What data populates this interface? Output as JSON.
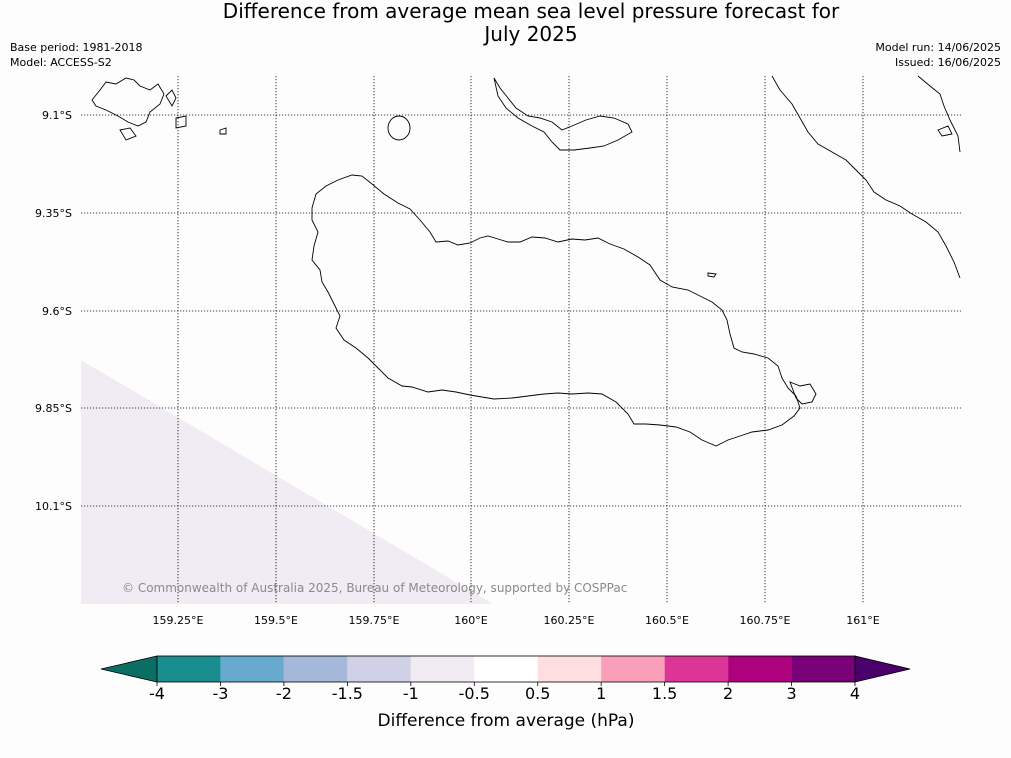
{
  "title": {
    "line1": "Difference from average mean sea level pressure forecast for",
    "line2": "July 2025"
  },
  "meta": {
    "base_period": "Base period: 1981-2018",
    "model": "Model: ACCESS-S2",
    "model_run": "Model run: 14/06/2025",
    "issued": "Issued: 16/06/2025"
  },
  "map": {
    "lon_ticks": [
      "159.25°E",
      "159.5°E",
      "159.75°E",
      "160°E",
      "160.25°E",
      "160.5°E",
      "160.75°E",
      "161°E"
    ],
    "lat_ticks": [
      "9.1°S",
      "9.35°S",
      "9.6°S",
      "9.85°S",
      "10.1°S"
    ],
    "copyright": "© Commonwealth of Australia 2025, Bureau of Meteorology, supported by COSPPac",
    "shaded_region_class": "-1 to -0.5",
    "shaded_color": "#f1ecf3"
  },
  "colorbar": {
    "title": "Difference from average (hPa)",
    "labels": [
      "-4",
      "-3",
      "-2",
      "-1.5",
      "-1",
      "-0.5",
      "0.5",
      "1",
      "1.5",
      "2",
      "3",
      "4"
    ],
    "colors": [
      "#1a8d8f",
      "#67a9cf",
      "#a6b8da",
      "#d0d1e6",
      "#f1ecf3",
      "#ffffff",
      "#ffdedf",
      "#f99fba",
      "#dd3497",
      "#ae017e",
      "#7a0177"
    ],
    "under_color": "#0b6e63",
    "over_color": "#49006a"
  }
}
